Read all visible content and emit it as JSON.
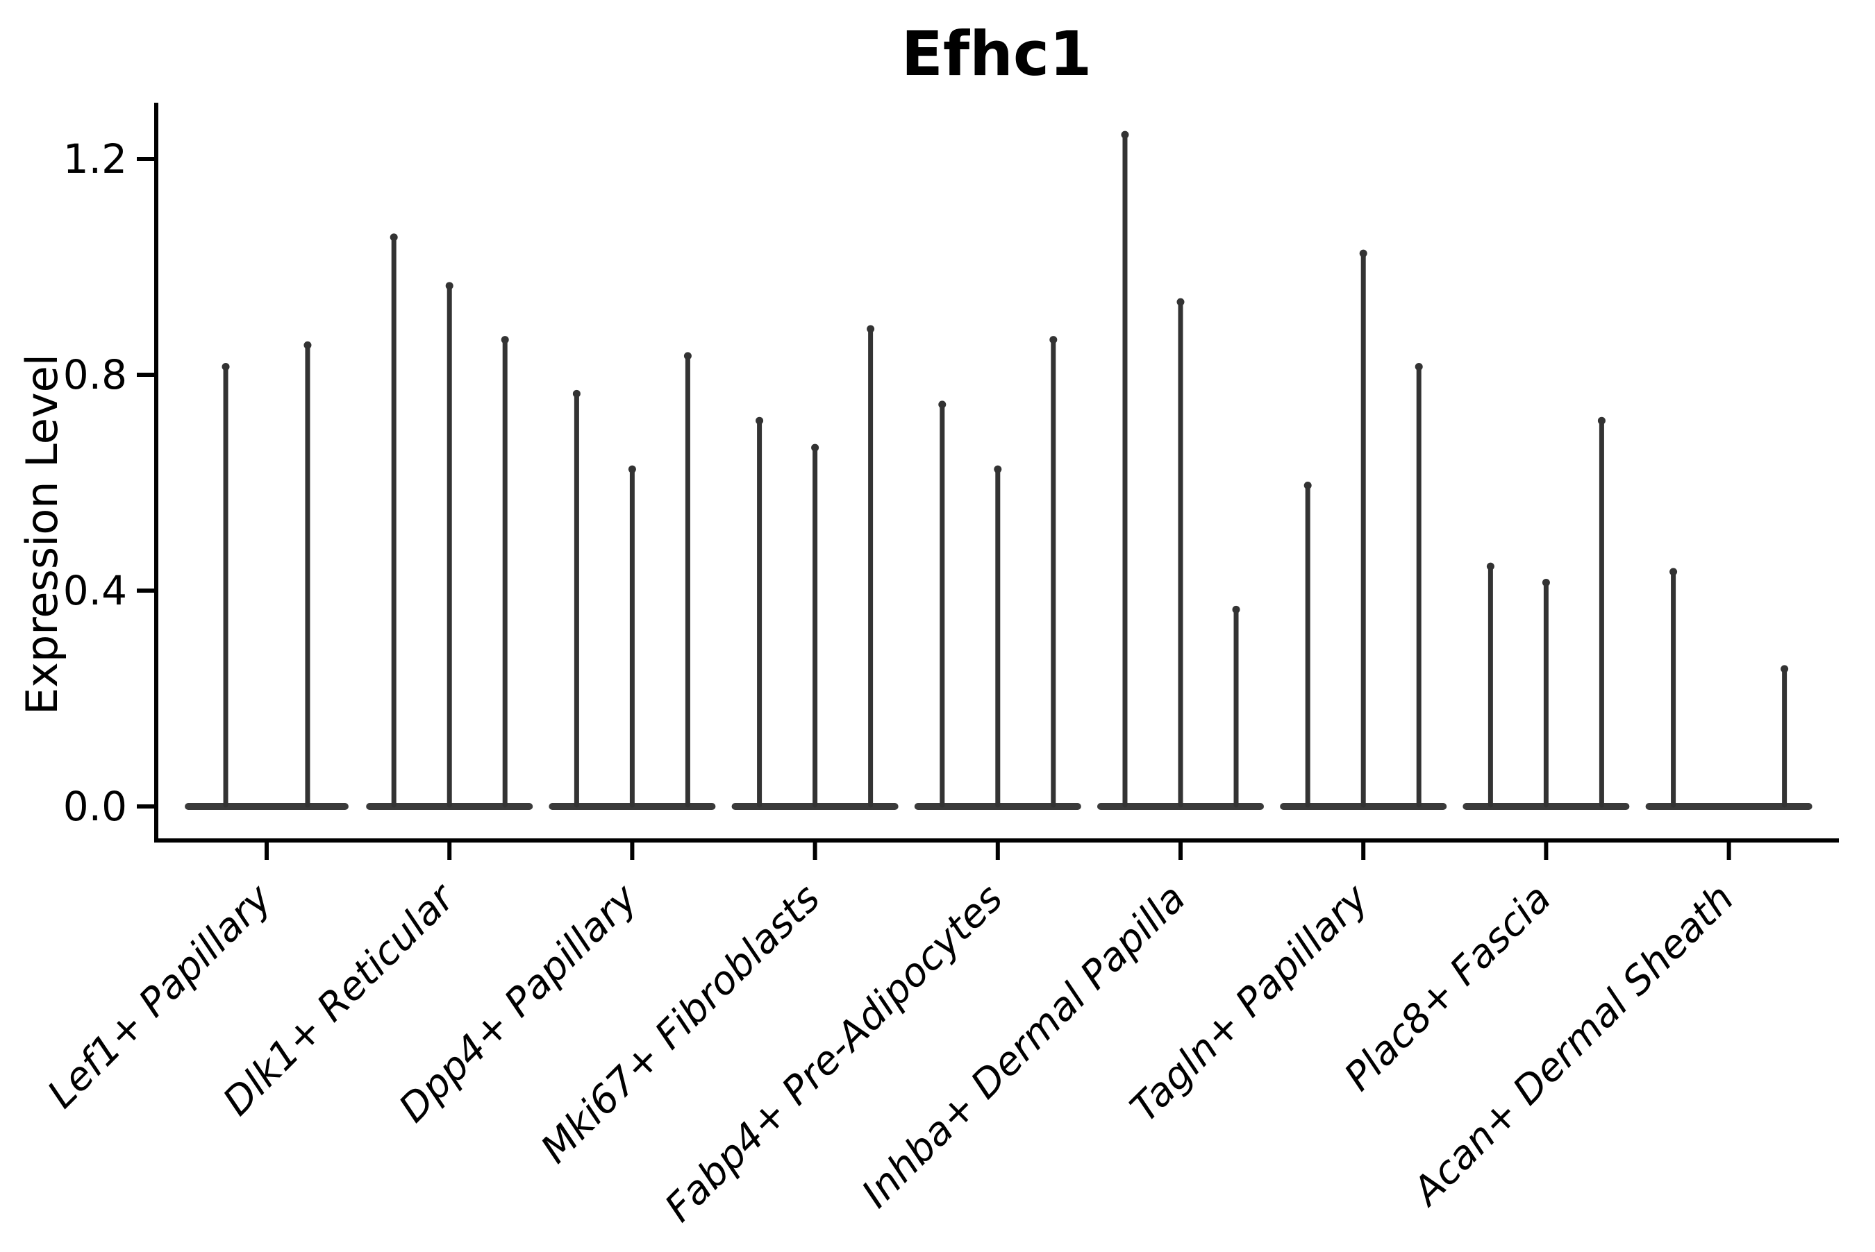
{
  "title": "Efhc1",
  "y_axis": {
    "label": "Expression Level",
    "ticks": [
      {
        "label": "0.0",
        "value": 0.0
      },
      {
        "label": "0.4",
        "value": 0.4
      },
      {
        "label": "0.8",
        "value": 0.8
      },
      {
        "label": "1.2",
        "value": 1.2
      }
    ]
  },
  "colors": {
    "violin": "#333333",
    "violin_base": "#3a3a3a",
    "axis": "#000000",
    "text": "#000000",
    "background": "#ffffff"
  },
  "chart_data": {
    "type": "violin",
    "title": "Efhc1",
    "xlabel": "",
    "ylabel": "Expression Level",
    "ylim": [
      0,
      1.3
    ],
    "grid": false,
    "x_tick_rotation": 45,
    "categories": [
      "Lef1+ Papillary",
      "Dlk1+ Reticular",
      "Dpp4+ Papillary",
      "Mki67+ Fibroblasts",
      "Fabp4+ Pre-Adipocytes",
      "Inhba+ Dermal Papilla",
      "Tagln+ Papillary",
      "Plac8+ Fascia",
      "Acan+ Dermal Sheath"
    ],
    "series": [
      {
        "category": "Lef1+ Papillary",
        "slot_halfwidth": 0.224,
        "violins": [
          {
            "offset": -0.224,
            "max": 0.82
          },
          {
            "offset": 0.224,
            "max": 0.86
          }
        ]
      },
      {
        "category": "Dlk1+ Reticular",
        "slot_halfwidth": 0.152,
        "violins": [
          {
            "offset": -0.304,
            "max": 1.06
          },
          {
            "offset": 0,
            "max": 0.97
          },
          {
            "offset": 0.304,
            "max": 0.87
          }
        ]
      },
      {
        "category": "Dpp4+ Papillary",
        "slot_halfwidth": 0.152,
        "violins": [
          {
            "offset": -0.304,
            "max": 0.77
          },
          {
            "offset": 0,
            "max": 0.63
          },
          {
            "offset": 0.304,
            "max": 0.84
          }
        ]
      },
      {
        "category": "Mki67+ Fibroblasts",
        "slot_halfwidth": 0.152,
        "violins": [
          {
            "offset": -0.304,
            "max": 0.72
          },
          {
            "offset": 0,
            "max": 0.67
          },
          {
            "offset": 0.304,
            "max": 0.89
          }
        ]
      },
      {
        "category": "Fabp4+ Pre-Adipocytes",
        "slot_halfwidth": 0.152,
        "violins": [
          {
            "offset": -0.304,
            "max": 0.75
          },
          {
            "offset": 0,
            "max": 0.63
          },
          {
            "offset": 0.304,
            "max": 0.87
          }
        ]
      },
      {
        "category": "Inhba+ Dermal Papilla",
        "slot_halfwidth": 0.152,
        "violins": [
          {
            "offset": -0.304,
            "max": 1.25
          },
          {
            "offset": 0,
            "max": 0.94
          },
          {
            "offset": 0.304,
            "max": 0.37
          }
        ]
      },
      {
        "category": "Tagln+ Papillary",
        "slot_halfwidth": 0.152,
        "violins": [
          {
            "offset": -0.304,
            "max": 0.6
          },
          {
            "offset": 0,
            "max": 1.03
          },
          {
            "offset": 0.304,
            "max": 0.82
          }
        ]
      },
      {
        "category": "Plac8+ Fascia",
        "slot_halfwidth": 0.152,
        "violins": [
          {
            "offset": -0.304,
            "max": 0.45
          },
          {
            "offset": 0,
            "max": 0.42
          },
          {
            "offset": 0.304,
            "max": 0.72
          }
        ]
      },
      {
        "category": "Acan+ Dermal Sheath",
        "slot_halfwidth": 0.152,
        "violins": [
          {
            "offset": -0.304,
            "max": 0.44
          },
          {
            "offset": 0,
            "max": 0.0
          },
          {
            "offset": 0.304,
            "max": 0.26
          }
        ]
      }
    ]
  }
}
